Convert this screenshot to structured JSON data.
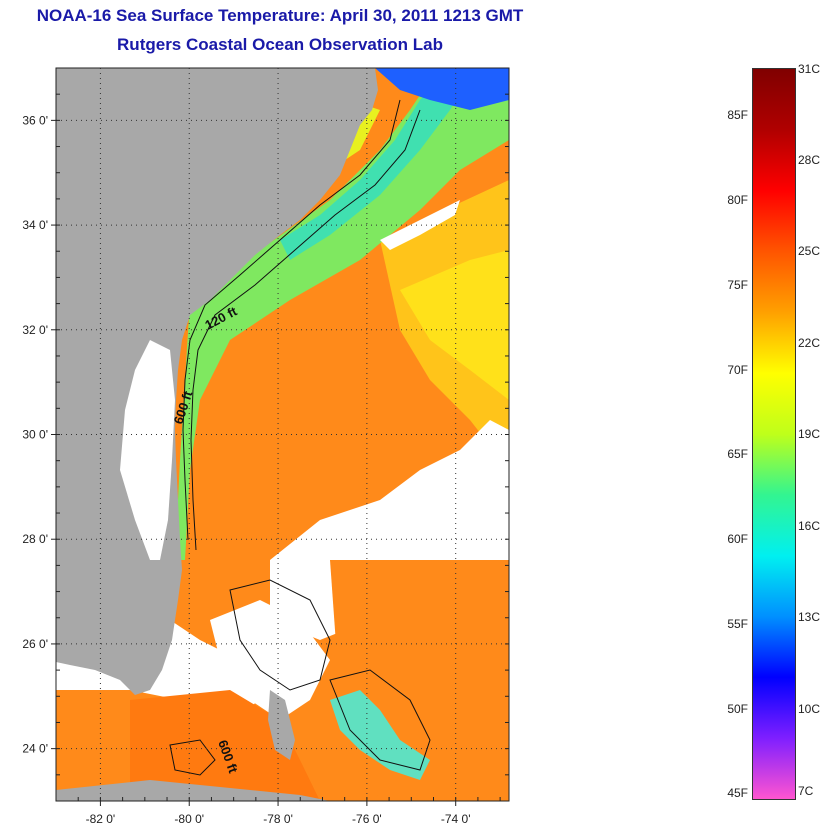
{
  "title": "NOAA-16 Sea Surface Temperature:  April 30, 2011 1213 GMT",
  "subtitle": "Rutgers Coastal Ocean Observation Lab",
  "map": {
    "lon_range": [
      -83.0,
      -72.8
    ],
    "lat_range": [
      23.0,
      37.0
    ],
    "lon_ticks": [
      {
        "value": -82,
        "label": "-82 0'"
      },
      {
        "value": -80,
        "label": "-80 0'"
      },
      {
        "value": -78,
        "label": "-78 0'"
      },
      {
        "value": -76,
        "label": "-76 0'"
      },
      {
        "value": -74,
        "label": "-74 0'"
      }
    ],
    "lat_ticks": [
      {
        "value": 36,
        "label": "36 0'"
      },
      {
        "value": 34,
        "label": "34 0'"
      },
      {
        "value": 32,
        "label": "32 0'"
      },
      {
        "value": 30,
        "label": "30 0'"
      },
      {
        "value": 28,
        "label": "28 0'"
      },
      {
        "value": 26,
        "label": "26 0'"
      },
      {
        "value": 24,
        "label": "24 0'"
      }
    ],
    "grid": true,
    "land_color": "#a8a8a8",
    "cloud_color": "#ffffff",
    "contour_labels": [
      "120 ft",
      "600 ft",
      "600 ft"
    ]
  },
  "colorbar": {
    "colors": [
      "#ff55d0",
      "#7f1fff",
      "#0000ff",
      "#0090ff",
      "#00f0f0",
      "#33f590",
      "#bfff1a",
      "#ffff00",
      "#ffa000",
      "#ff5500",
      "#ff0000",
      "#b00000",
      "#800000"
    ],
    "fahrenheit": [
      {
        "label": "85F",
        "value": 85
      },
      {
        "label": "80F",
        "value": 80
      },
      {
        "label": "75F",
        "value": 75
      },
      {
        "label": "70F",
        "value": 70
      },
      {
        "label": "65F",
        "value": 65
      },
      {
        "label": "60F",
        "value": 60
      },
      {
        "label": "55F",
        "value": 55
      },
      {
        "label": "50F",
        "value": 50
      },
      {
        "label": "45F",
        "value": 45
      }
    ],
    "celsius": [
      {
        "label": "31C",
        "value": 31
      },
      {
        "label": "28C",
        "value": 28
      },
      {
        "label": "25C",
        "value": 25
      },
      {
        "label": "22C",
        "value": 22
      },
      {
        "label": "19C",
        "value": 19
      },
      {
        "label": "16C",
        "value": 16
      },
      {
        "label": "13C",
        "value": 13
      },
      {
        "label": "10C",
        "value": 10
      },
      {
        "label": "7C",
        "value": 7
      }
    ]
  }
}
